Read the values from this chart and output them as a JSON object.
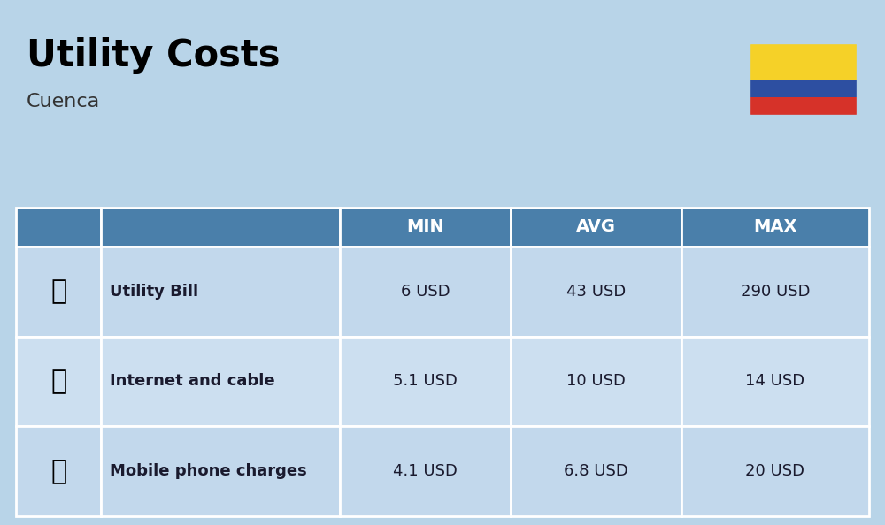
{
  "title": "Utility Costs",
  "subtitle": "Cuenca",
  "background_color": "#b8d4e8",
  "header_bg_color": "#4a7faa",
  "header_text_color": "#ffffff",
  "row_bg_color_1": "#c2d8ec",
  "row_bg_color_2": "#ccdff0",
  "cell_text_color": "#1a1a2e",
  "title_color": "#000000",
  "subtitle_color": "#333333",
  "rows": [
    {
      "label": "Utility Bill",
      "min": "6 USD",
      "avg": "43 USD",
      "max": "290 USD"
    },
    {
      "label": "Internet and cable",
      "min": "5.1 USD",
      "avg": "10 USD",
      "max": "14 USD"
    },
    {
      "label": "Mobile phone charges",
      "min": "4.1 USD",
      "avg": "6.8 USD",
      "max": "20 USD"
    }
  ],
  "flag_yellow": "#F5D128",
  "flag_blue": "#2D4FA1",
  "flag_red": "#D63229",
  "figsize": [
    10.0,
    5.94
  ],
  "dpi": 100
}
